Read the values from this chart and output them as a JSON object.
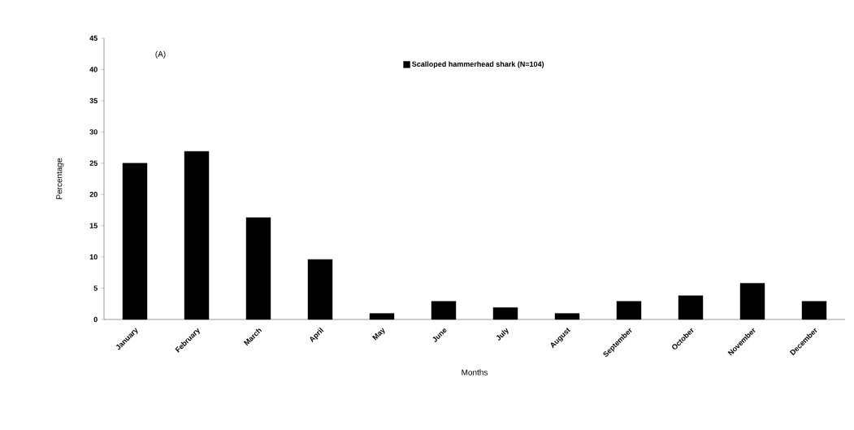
{
  "chart_data": {
    "type": "bar",
    "xlabel": "Months",
    "ylabel": "Percentage",
    "annotations": [
      "(A)"
    ],
    "categories": [
      "January",
      "February",
      "March",
      "April",
      "May",
      "June",
      "July",
      "August",
      "September",
      "October",
      "November",
      "December"
    ],
    "series": [
      {
        "name": "Scalloped hammerhead shark (N=104)",
        "color": "#000000",
        "values": [
          25.0,
          26.9,
          16.3,
          9.6,
          0.96,
          2.9,
          1.9,
          0.96,
          2.9,
          3.8,
          5.8,
          2.9
        ]
      }
    ],
    "ylim": [
      0,
      45
    ],
    "yticks": [
      0,
      5,
      10,
      15,
      20,
      25,
      30,
      35,
      40,
      45
    ],
    "legend": "top"
  }
}
